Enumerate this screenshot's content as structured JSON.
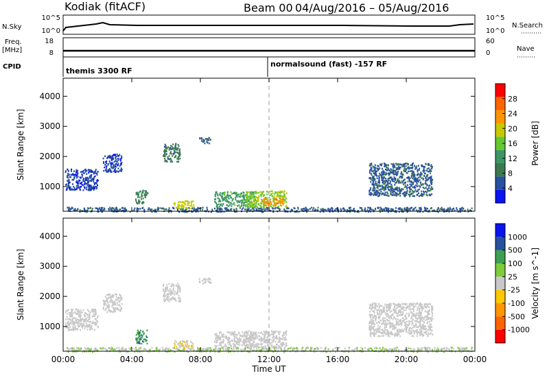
{
  "header": {
    "radar": "Kodiak (fitACF)",
    "beam": "Beam 00",
    "date_range": "04/Aug/2016 – 05/Aug/2016"
  },
  "top_labels": {
    "nsky": "N.Sky",
    "freq_line1": "Freq.",
    "freq_line2": "[MHz]",
    "cpid": "CPID",
    "nsearch": "N.Search",
    "nave": "Nave",
    "noise_ticks_left": [
      "10^5",
      "10^0"
    ],
    "noise_ticks_right": [
      "10^5",
      "10^0"
    ],
    "freq_ticks_left": [
      "18",
      "8"
    ],
    "freq_ticks_right": [
      "60",
      "0"
    ]
  },
  "cpid_entries": [
    {
      "label": "themis 3300 RF",
      "start_hour": 0
    },
    {
      "label": "normalsound (fast) -157 RF",
      "start_hour": 12
    }
  ],
  "colors": {
    "power_scale": [
      "#0a14f0",
      "#2850a0",
      "#3c7850",
      "#3c9664",
      "#64c832",
      "#c8c800",
      "#ff9600",
      "#ff6400",
      "#ff0000"
    ],
    "velocity_scale": [
      "#ff0000",
      "#ff6400",
      "#ff9600",
      "#ffc800",
      "#c8c8c8",
      "#7ccc3c",
      "#3ca050",
      "#2850a0",
      "#0a14f0"
    ],
    "ground_scatter": "#c8c8c8"
  },
  "chart_data": [
    {
      "type": "heatmap",
      "title": "",
      "xlabel": "Time UT",
      "ylabel": "Slant Range [km]",
      "x_ticks": [
        "00:00",
        "04:00",
        "08:00",
        "12:00",
        "16:00",
        "20:00",
        "00:00"
      ],
      "xlim_hours": [
        0,
        24
      ],
      "ylim_km": [
        180,
        4600
      ],
      "y_ticks": [
        1000,
        2000,
        3000,
        4000
      ],
      "colorbar": {
        "label": "Power [dB]",
        "ticks": [
          "4",
          "8",
          "12",
          "16",
          "20",
          "24",
          "28"
        ],
        "range": [
          0,
          30
        ]
      },
      "marker_line_hour": 12,
      "features": [
        {
          "t_start": 0.2,
          "t_end": 23.8,
          "r_start": 180,
          "r_end": 330,
          "level": 6
        },
        {
          "t_start": 0.1,
          "t_end": 2.0,
          "r_start": 900,
          "r_end": 1600,
          "level": 4
        },
        {
          "t_start": 2.3,
          "t_end": 3.4,
          "r_start": 1500,
          "r_end": 2100,
          "level": 4
        },
        {
          "t_start": 4.2,
          "t_end": 4.9,
          "r_start": 450,
          "r_end": 900,
          "level": 10
        },
        {
          "t_start": 5.8,
          "t_end": 6.8,
          "r_start": 1850,
          "r_end": 2450,
          "level": 8
        },
        {
          "t_start": 6.4,
          "t_end": 7.6,
          "r_start": 300,
          "r_end": 550,
          "level": 18
        },
        {
          "t_start": 7.9,
          "t_end": 8.6,
          "r_start": 2450,
          "r_end": 2650,
          "level": 6
        },
        {
          "t_start": 8.8,
          "t_end": 11.2,
          "r_start": 350,
          "r_end": 850,
          "level": 12
        },
        {
          "t_start": 10.6,
          "t_end": 13.0,
          "r_start": 330,
          "r_end": 880,
          "level": 16
        },
        {
          "t_start": 11.6,
          "t_end": 12.8,
          "r_start": 380,
          "r_end": 650,
          "level": 22
        },
        {
          "t_start": 17.8,
          "t_end": 21.5,
          "r_start": 700,
          "r_end": 1800,
          "level": 6
        }
      ]
    },
    {
      "type": "heatmap",
      "title": "",
      "xlabel": "Time UT",
      "ylabel": "Slant Range [km]",
      "x_ticks": [
        "00:00",
        "04:00",
        "08:00",
        "12:00",
        "16:00",
        "20:00",
        "00:00"
      ],
      "xlim_hours": [
        0,
        24
      ],
      "ylim_km": [
        180,
        4600
      ],
      "y_ticks": [
        1000,
        2000,
        3000,
        4000
      ],
      "colorbar": {
        "label": "Velocity [m s^-1]",
        "ticks": [
          "-1000",
          "-500",
          "-100",
          "-25",
          "25",
          "100",
          "500",
          "1000"
        ],
        "range": [
          -1200,
          1200
        ]
      },
      "marker_line_hour": 12,
      "features": [
        {
          "t_start": 0.2,
          "t_end": 23.8,
          "r_start": 180,
          "r_end": 330,
          "level": 100
        },
        {
          "t_start": 0.1,
          "t_end": 2.0,
          "r_start": 900,
          "r_end": 1600,
          "level": 0
        },
        {
          "t_start": 2.3,
          "t_end": 3.4,
          "r_start": 1500,
          "r_end": 2100,
          "level": 0
        },
        {
          "t_start": 4.2,
          "t_end": 4.9,
          "r_start": 450,
          "r_end": 900,
          "level": 600
        },
        {
          "t_start": 5.8,
          "t_end": 6.8,
          "r_start": 1850,
          "r_end": 2450,
          "level": 0
        },
        {
          "t_start": 6.4,
          "t_end": 7.6,
          "r_start": 300,
          "r_end": 550,
          "level": -80
        },
        {
          "t_start": 7.9,
          "t_end": 8.6,
          "r_start": 2450,
          "r_end": 2650,
          "level": 0
        },
        {
          "t_start": 8.8,
          "t_end": 11.2,
          "r_start": 350,
          "r_end": 850,
          "level": 0
        },
        {
          "t_start": 10.6,
          "t_end": 13.0,
          "r_start": 330,
          "r_end": 880,
          "level": 0
        },
        {
          "t_start": 17.8,
          "t_end": 21.5,
          "r_start": 700,
          "r_end": 1800,
          "level": 0
        }
      ]
    }
  ]
}
